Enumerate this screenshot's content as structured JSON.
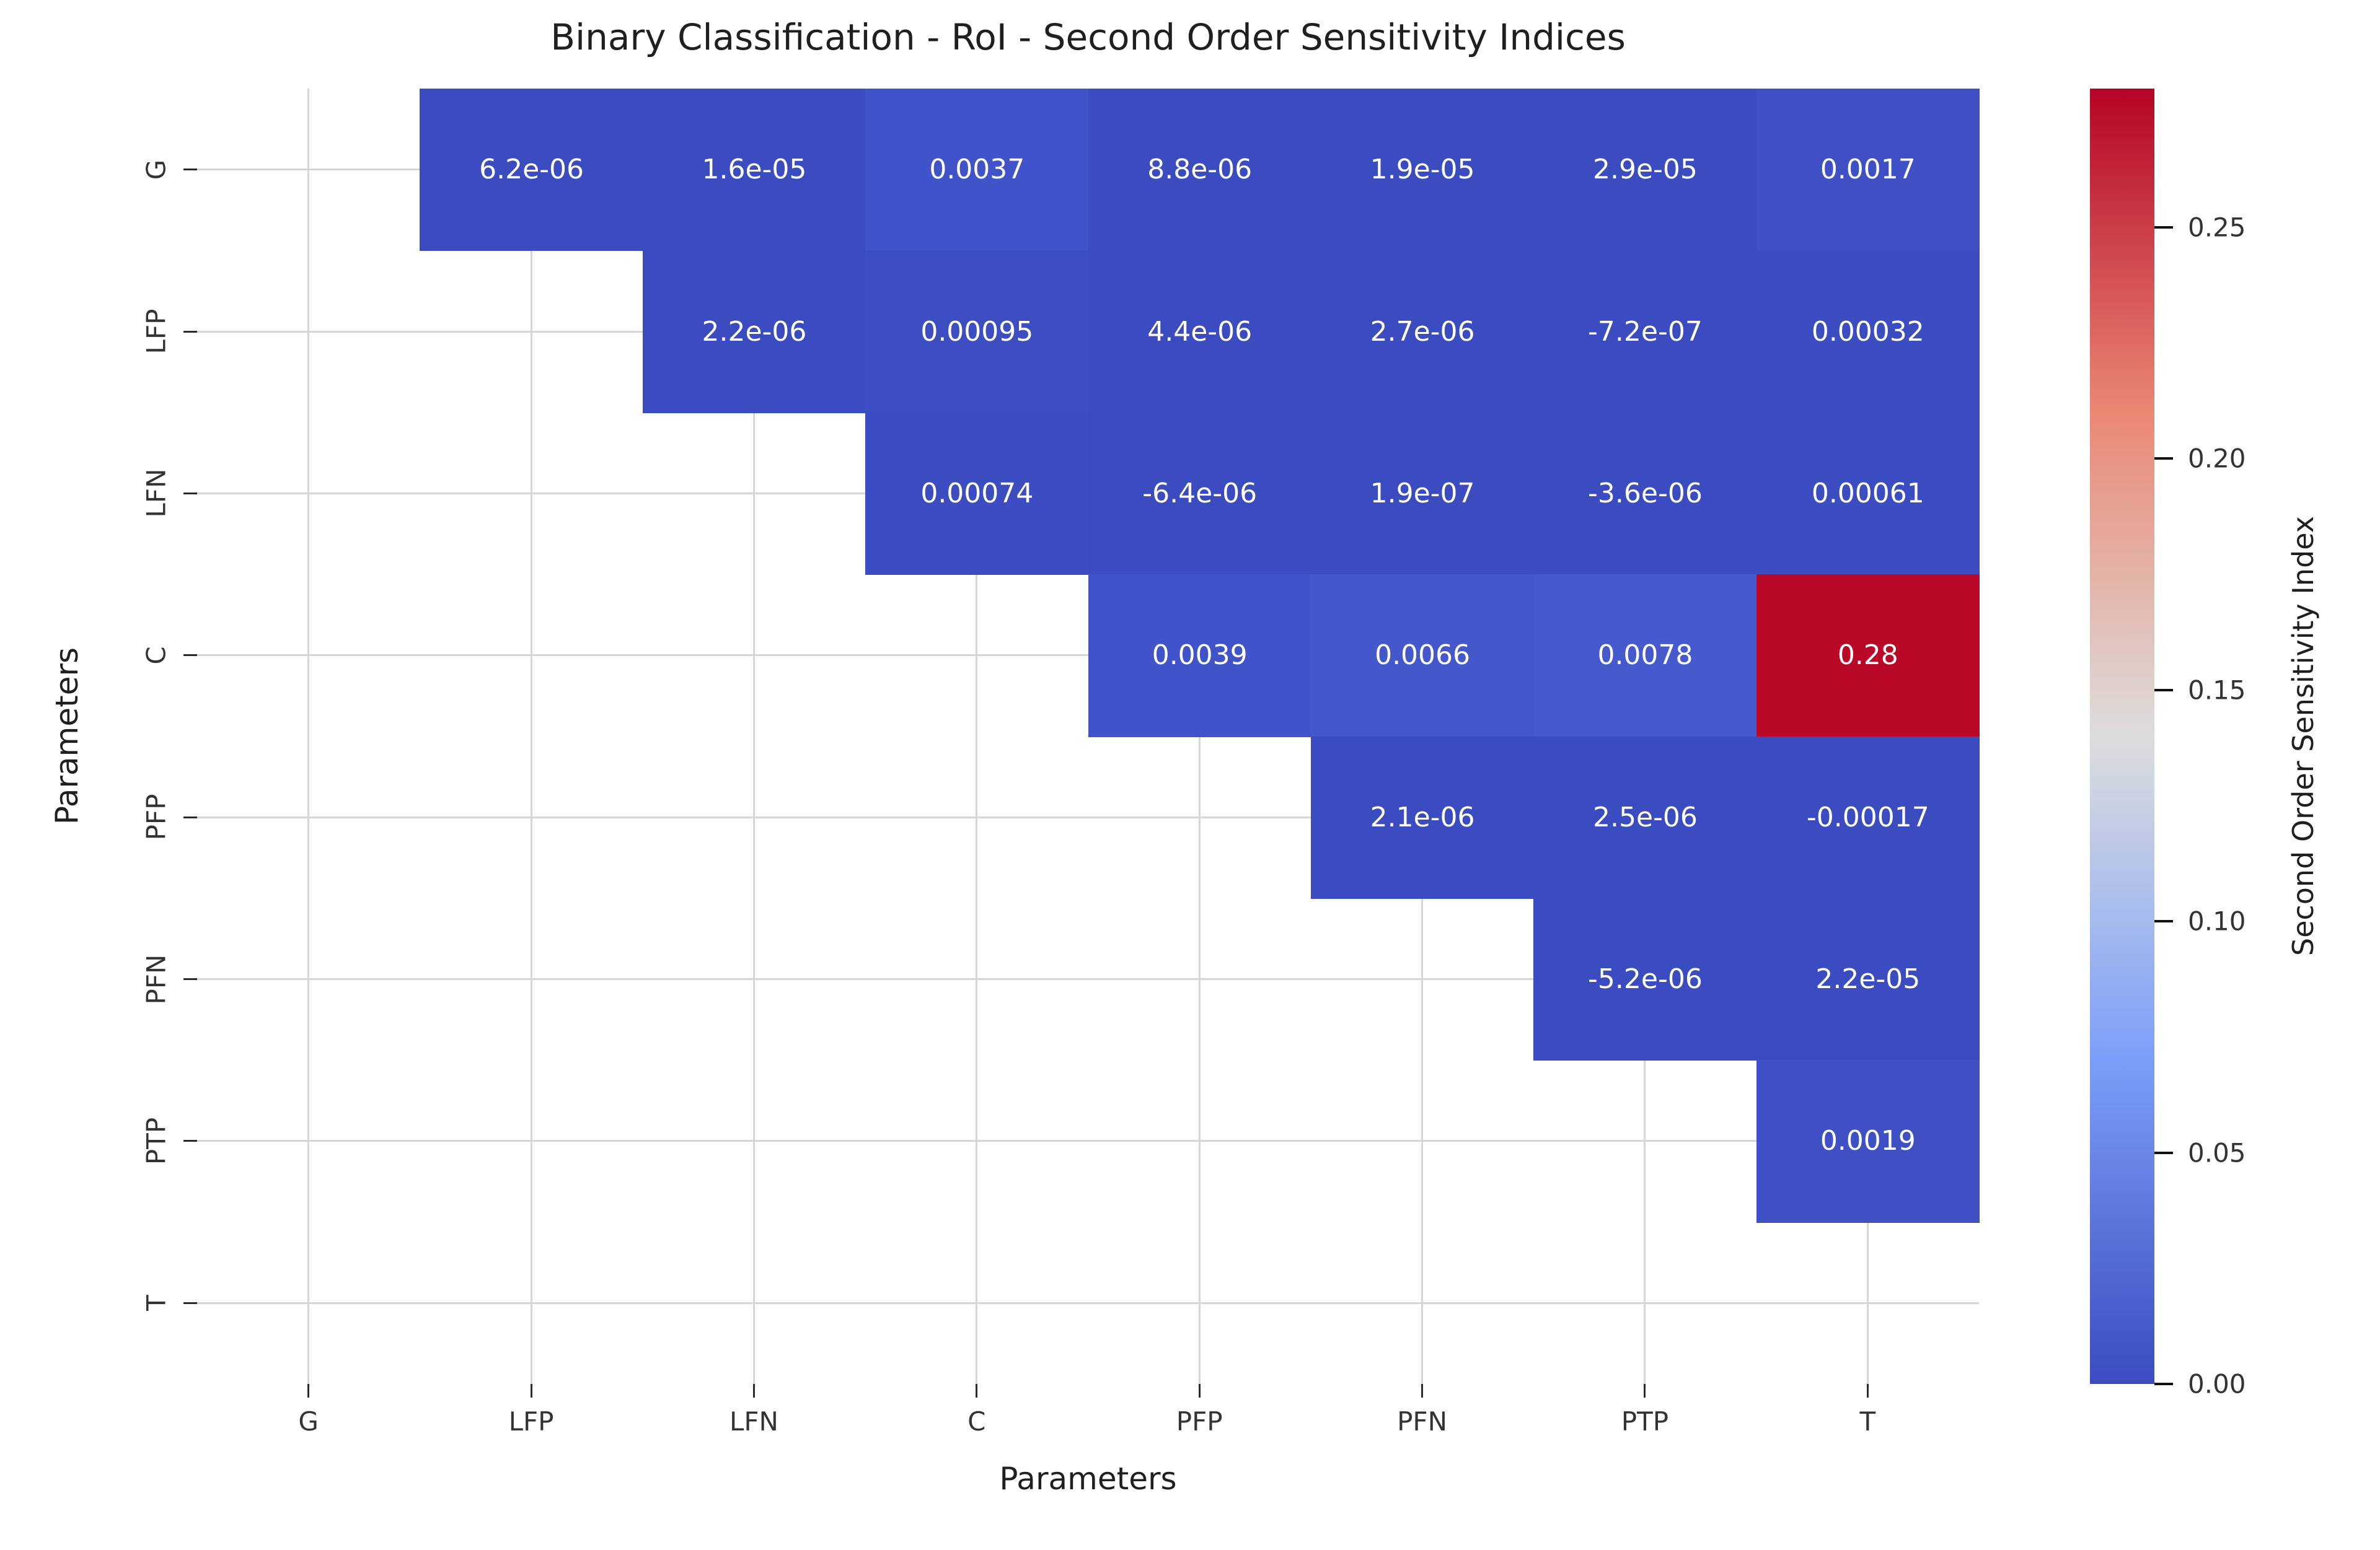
{
  "chart_data": {
    "type": "heatmap",
    "title": "Binary Classification - RoI - Second Order Sensitivity Indices",
    "xlabel": "Parameters",
    "ylabel": "Parameters",
    "categories": [
      "G",
      "LFP",
      "LFN",
      "C",
      "PFP",
      "PFN",
      "PTP",
      "T"
    ],
    "shape": "upper-triangle-excluding-diagonal",
    "grid": true,
    "colorbar": {
      "label": "Second Order Sensitivity Index",
      "vmin": 0.0,
      "vmax": 0.28,
      "tick_values": [
        0.0,
        0.05,
        0.1,
        0.15,
        0.2,
        0.25
      ],
      "tick_labels": [
        "0.00",
        "0.05",
        "0.10",
        "0.15",
        "0.20",
        "0.25"
      ],
      "colormap": "coolwarm",
      "gradient_stops": [
        "#3B4CC0",
        "#7B9FF9",
        "#DDDDDD",
        "#EA8873",
        "#B40426"
      ]
    },
    "cells": [
      {
        "row": "G",
        "col": "LFP",
        "value": 6.2e-06,
        "label": "6.2e-06",
        "color": "#3B4CC0"
      },
      {
        "row": "G",
        "col": "LFN",
        "value": 1.6e-05,
        "label": "1.6e-05",
        "color": "#3B4CC0"
      },
      {
        "row": "G",
        "col": "C",
        "value": 0.0037,
        "label": "0.0037",
        "color": "#4153C8"
      },
      {
        "row": "G",
        "col": "PFP",
        "value": 8.8e-06,
        "label": "8.8e-06",
        "color": "#3B4CC0"
      },
      {
        "row": "G",
        "col": "PFN",
        "value": 1.9e-05,
        "label": "1.9e-05",
        "color": "#3B4CC0"
      },
      {
        "row": "G",
        "col": "PTP",
        "value": 2.9e-05,
        "label": "2.9e-05",
        "color": "#3B4CC0"
      },
      {
        "row": "G",
        "col": "T",
        "value": 0.0017,
        "label": "0.0017",
        "color": "#3E50C4"
      },
      {
        "row": "LFP",
        "col": "LFN",
        "value": 2.2e-06,
        "label": "2.2e-06",
        "color": "#3B4CC0"
      },
      {
        "row": "LFP",
        "col": "C",
        "value": 0.00095,
        "label": "0.00095",
        "color": "#3C4EC2"
      },
      {
        "row": "LFP",
        "col": "PFP",
        "value": 4.4e-06,
        "label": "4.4e-06",
        "color": "#3B4CC0"
      },
      {
        "row": "LFP",
        "col": "PFN",
        "value": 2.7e-06,
        "label": "2.7e-06",
        "color": "#3B4CC0"
      },
      {
        "row": "LFP",
        "col": "PTP",
        "value": -7.2e-07,
        "label": "-7.2e-07",
        "color": "#3B4CC0"
      },
      {
        "row": "LFP",
        "col": "T",
        "value": 0.00032,
        "label": "0.00032",
        "color": "#3C4DC1"
      },
      {
        "row": "LFN",
        "col": "C",
        "value": 0.00074,
        "label": "0.00074",
        "color": "#3C4DC2"
      },
      {
        "row": "LFN",
        "col": "PFP",
        "value": -6.4e-06,
        "label": "-6.4e-06",
        "color": "#3B4CC0"
      },
      {
        "row": "LFN",
        "col": "PFN",
        "value": 1.9e-07,
        "label": "1.9e-07",
        "color": "#3B4CC0"
      },
      {
        "row": "LFN",
        "col": "PTP",
        "value": -3.6e-06,
        "label": "-3.6e-06",
        "color": "#3B4CC0"
      },
      {
        "row": "LFN",
        "col": "T",
        "value": 0.00061,
        "label": "0.00061",
        "color": "#3C4DC1"
      },
      {
        "row": "C",
        "col": "PFP",
        "value": 0.0039,
        "label": "0.0039",
        "color": "#4153C8"
      },
      {
        "row": "C",
        "col": "PFN",
        "value": 0.0066,
        "label": "0.0066",
        "color": "#4558CB"
      },
      {
        "row": "C",
        "col": "PTP",
        "value": 0.0078,
        "label": "0.0078",
        "color": "#475ACD"
      },
      {
        "row": "C",
        "col": "T",
        "value": 0.28,
        "label": "0.28",
        "color": "#B90828"
      },
      {
        "row": "PFP",
        "col": "PFN",
        "value": 2.1e-06,
        "label": "2.1e-06",
        "color": "#3B4CC0"
      },
      {
        "row": "PFP",
        "col": "PTP",
        "value": 2.5e-06,
        "label": "2.5e-06",
        "color": "#3B4CC0"
      },
      {
        "row": "PFP",
        "col": "T",
        "value": -0.00017,
        "label": "-0.00017",
        "color": "#3B4CC0"
      },
      {
        "row": "PFN",
        "col": "PTP",
        "value": -5.2e-06,
        "label": "-5.2e-06",
        "color": "#3B4CC0"
      },
      {
        "row": "PFN",
        "col": "T",
        "value": 2.2e-05,
        "label": "2.2e-05",
        "color": "#3B4CC0"
      },
      {
        "row": "PTP",
        "col": "T",
        "value": 0.0019,
        "label": "0.0019",
        "color": "#3E50C4"
      }
    ],
    "styles": {
      "cell_text_color": "#FFFFFF",
      "grid_color": "#D6D6D6",
      "tick_mark_color": "#2B2B2B",
      "tick_label_color": "#333333",
      "text_color": "#1F1F1F",
      "background_color": "#FFFFFF"
    }
  }
}
